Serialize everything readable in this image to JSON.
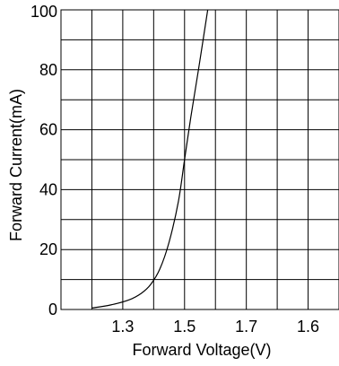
{
  "chart_data": {
    "type": "line",
    "title": "",
    "xlabel": "Forward Voltage(V)",
    "ylabel": "Forward Current(mA)",
    "x_tick_labels": [
      "1.3",
      "1.5",
      "1.7",
      "1.6"
    ],
    "y_ticks": [
      0,
      20,
      40,
      60,
      80,
      100
    ],
    "ylim": [
      0,
      100
    ],
    "grid": true,
    "series": [
      {
        "points": [
          {
            "x": 1.2,
            "y": 0.5
          },
          {
            "x": 1.26,
            "y": 1.5
          },
          {
            "x": 1.32,
            "y": 3.2
          },
          {
            "x": 1.36,
            "y": 5.4
          },
          {
            "x": 1.39,
            "y": 8.3
          },
          {
            "x": 1.42,
            "y": 13.5
          },
          {
            "x": 1.45,
            "y": 22.5
          },
          {
            "x": 1.48,
            "y": 36.0
          },
          {
            "x": 1.5,
            "y": 50.0
          },
          {
            "x": 1.52,
            "y": 64.0
          },
          {
            "x": 1.545,
            "y": 80.0
          },
          {
            "x": 1.575,
            "y": 100.0
          }
        ]
      }
    ],
    "colors": {
      "line": "#000000",
      "grid": "#000000"
    }
  }
}
